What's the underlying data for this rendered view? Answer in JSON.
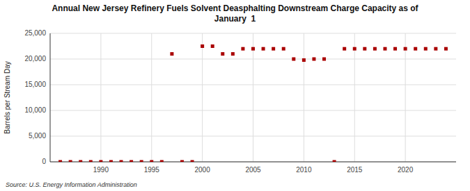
{
  "chart_data": {
    "type": "scatter",
    "title": "Annual New Jersey Refinery Fuels Solvent Deasphalting Downstream Charge Capacity as of\nJanuary  1",
    "y_label": "Barrels per Stream Day",
    "annotations": [
      "Source: U.S. Energy Information Administration"
    ],
    "x": [
      1986,
      1987,
      1988,
      1989,
      1990,
      1991,
      1992,
      1993,
      1994,
      1995,
      1996,
      1997,
      1998,
      1999,
      2000,
      2001,
      2002,
      2003,
      2004,
      2005,
      2006,
      2007,
      2008,
      2009,
      2010,
      2011,
      2012,
      2013,
      2014,
      2015,
      2016,
      2017,
      2018,
      2019,
      2020,
      2021,
      2022,
      2023,
      2024
    ],
    "values": [
      0,
      0,
      0,
      0,
      0,
      0,
      0,
      0,
      0,
      0,
      0,
      21000,
      0,
      0,
      22500,
      22500,
      21000,
      21000,
      22000,
      22000,
      22000,
      22000,
      22000,
      20000,
      19800,
      20000,
      20000,
      0,
      22000,
      22000,
      22000,
      22000,
      22000,
      22000,
      22000,
      22000,
      22000,
      22000,
      22000
    ],
    "color": "#aa0000",
    "marker": "square",
    "xlim": [
      1985,
      2025
    ],
    "xticks": [
      1990,
      1995,
      2000,
      2005,
      2010,
      2015,
      2020
    ],
    "ylim": [
      0,
      25000
    ],
    "yticks": [
      0,
      {
        "value": 5000,
        "label": "5,000"
      },
      {
        "value": 10000,
        "label": "10,000"
      },
      {
        "value": 15000,
        "label": "15,000"
      },
      {
        "value": 20000,
        "label": "20,000"
      },
      {
        "value": 25000,
        "label": "25,000"
      }
    ],
    "grid": true
  }
}
